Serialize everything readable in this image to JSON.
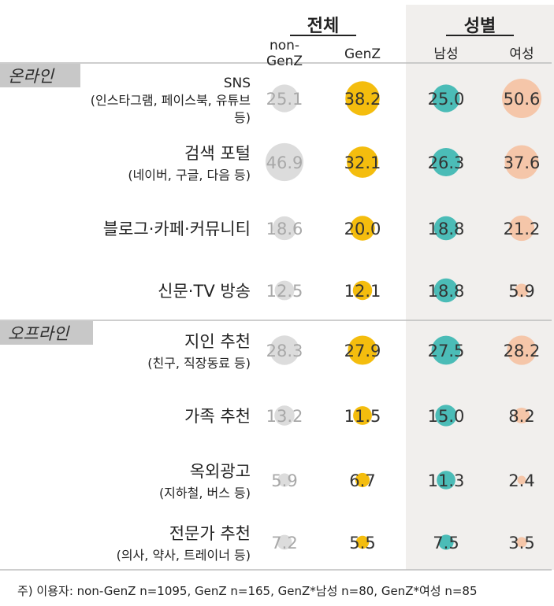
{
  "chart_data": {
    "type": "bubble-table",
    "groups": [
      {
        "label": "전체",
        "columns": [
          "non-GenZ",
          "GenZ"
        ]
      },
      {
        "label": "성별",
        "columns": [
          "남성",
          "여성"
        ]
      }
    ],
    "columns": [
      "non-GenZ",
      "GenZ",
      "남성",
      "여성"
    ],
    "sections": [
      {
        "label": "온라인",
        "rows": [
          {
            "label_lines": [
              "SNS",
              "(인스타그램, 페이스북, 유튜브",
              "등)"
            ],
            "values": [
              25.1,
              38.2,
              25.0,
              50.6
            ]
          },
          {
            "label_lines": [
              "검색 포털",
              "(네이버, 구글, 다음 등)"
            ],
            "values": [
              46.9,
              32.1,
              26.3,
              37.6
            ]
          },
          {
            "label_lines": [
              "블로그·카페·커뮤니티"
            ],
            "values": [
              18.6,
              20.0,
              18.8,
              21.2
            ]
          },
          {
            "label_lines": [
              "신문·TV 방송"
            ],
            "values": [
              12.5,
              12.1,
              18.8,
              5.9
            ]
          }
        ]
      },
      {
        "label": "오프라인",
        "rows": [
          {
            "label_lines": [
              "지인 추천",
              "(친구, 직장동료 등)"
            ],
            "values": [
              28.3,
              27.9,
              27.5,
              28.2
            ]
          },
          {
            "label_lines": [
              "가족 추천"
            ],
            "values": [
              13.2,
              11.5,
              15.0,
              8.2
            ]
          },
          {
            "label_lines": [
              "옥외광고",
              "(지하철, 버스 등)"
            ],
            "values": [
              5.9,
              6.7,
              11.3,
              2.4
            ]
          },
          {
            "label_lines": [
              "전문가 추천",
              "(의사, 약사, 트레이너 등)"
            ],
            "values": [
              7.2,
              5.5,
              7.5,
              3.5
            ]
          }
        ]
      }
    ],
    "colors": {
      "non-GenZ": "#dcdcdc",
      "GenZ": "#f4bd0e",
      "남성": "#4bbcb7",
      "여성": "#f5c6a9",
      "gender_panel_bg": "#f1efed",
      "section_band": "#c8c8c8",
      "muted_text": "#a8a8a8"
    },
    "footnote": "주) 이용자: non-GenZ n=1095, GenZ n=165, GenZ*남성 n=80, GenZ*여성 n=85"
  }
}
